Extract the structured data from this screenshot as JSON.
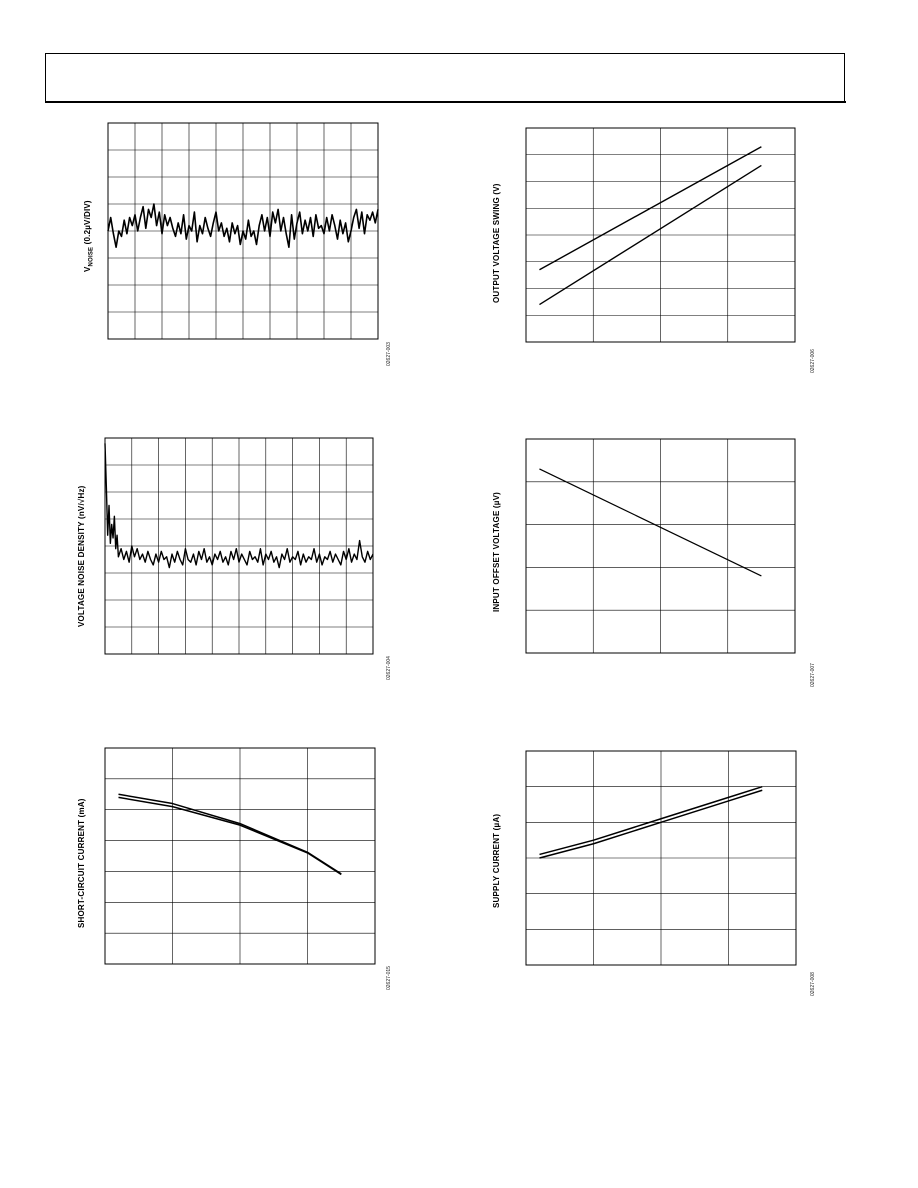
{
  "chart_data": [
    {
      "id": "c1",
      "type": "line",
      "ylabel_prefix": "V",
      "ylabel_sub": "NOISE",
      "ylabel_rest": " (0.2µV/DIV)",
      "figure_id": "02627-003",
      "grid": true,
      "grid_cols": 10,
      "grid_rows": 8,
      "xlim": [
        0,
        10
      ],
      "ylim": [
        0,
        8
      ],
      "series": [
        {
          "x": [
            0,
            0.1,
            0.2,
            0.3,
            0.4,
            0.5,
            0.6,
            0.7,
            0.8,
            0.9,
            1.0,
            1.1,
            1.2,
            1.3,
            1.4,
            1.5,
            1.6,
            1.7,
            1.8,
            1.9,
            2.0,
            2.1,
            2.2,
            2.3,
            2.4,
            2.5,
            2.6,
            2.7,
            2.8,
            2.9,
            3.0,
            3.1,
            3.2,
            3.3,
            3.4,
            3.5,
            3.6,
            3.7,
            3.8,
            3.9,
            4.0,
            4.1,
            4.2,
            4.3,
            4.4,
            4.5,
            4.6,
            4.7,
            4.8,
            4.9,
            5.0,
            5.1,
            5.2,
            5.3,
            5.4,
            5.5,
            5.6,
            5.7,
            5.8,
            5.9,
            6.0,
            6.1,
            6.2,
            6.3,
            6.4,
            6.5,
            6.6,
            6.7,
            6.8,
            6.9,
            7.0,
            7.1,
            7.2,
            7.3,
            7.4,
            7.5,
            7.6,
            7.7,
            7.8,
            7.9,
            8.0,
            8.1,
            8.2,
            8.3,
            8.4,
            8.5,
            8.6,
            8.7,
            8.8,
            8.9,
            9.0,
            9.1,
            9.2,
            9.3,
            9.4,
            9.5,
            9.6,
            9.7,
            9.8,
            9.9,
            10.0
          ],
          "y": [
            4.0,
            4.5,
            3.9,
            3.4,
            4.0,
            3.8,
            4.4,
            3.9,
            4.5,
            4.2,
            4.6,
            4.0,
            4.5,
            4.9,
            4.1,
            4.8,
            4.5,
            5.0,
            4.2,
            4.7,
            3.9,
            4.6,
            4.2,
            4.5,
            4.1,
            3.8,
            4.3,
            3.9,
            4.6,
            3.7,
            4.2,
            4.0,
            4.7,
            3.6,
            4.2,
            3.9,
            4.5,
            4.1,
            3.8,
            4.3,
            4.7,
            4.0,
            4.3,
            3.8,
            4.1,
            3.6,
            4.3,
            3.9,
            4.2,
            3.5,
            4.0,
            3.7,
            4.4,
            3.8,
            4.0,
            3.5,
            4.2,
            4.6,
            4.0,
            4.5,
            3.8,
            4.7,
            4.3,
            4.8,
            4.0,
            4.5,
            3.9,
            3.4,
            4.6,
            3.7,
            4.3,
            4.7,
            3.9,
            4.4,
            4.0,
            4.5,
            3.8,
            4.6,
            4.1,
            4.2,
            3.9,
            4.5,
            4.0,
            4.6,
            4.2,
            3.7,
            4.4,
            3.9,
            4.3,
            3.6,
            4.0,
            4.5,
            4.8,
            4.1,
            4.7,
            3.9,
            4.6,
            4.4,
            4.7,
            4.3,
            4.8
          ]
        }
      ]
    },
    {
      "id": "c2",
      "type": "line",
      "ylabel": "OUTPUT VOLTAGE SWING (V)",
      "figure_id": "02627-006",
      "grid": true,
      "grid_cols": 4,
      "grid_rows": 8,
      "xlim": [
        0,
        4
      ],
      "ylim": [
        0,
        8
      ],
      "series": [
        {
          "x": [
            0.2,
            3.5
          ],
          "y": [
            2.7,
            7.3
          ]
        },
        {
          "x": [
            0.2,
            3.5
          ],
          "y": [
            1.4,
            6.6
          ]
        }
      ]
    },
    {
      "id": "c3",
      "type": "line",
      "ylabel": "VOLTAGE NOISE DENSITY (nV/√Hz)",
      "figure_id": "02627-004",
      "grid": true,
      "grid_cols": 10,
      "grid_rows": 8,
      "xlim": [
        0,
        10
      ],
      "ylim": [
        0,
        8
      ],
      "series": [
        {
          "x": [
            0,
            0.05,
            0.1,
            0.15,
            0.2,
            0.25,
            0.3,
            0.35,
            0.4,
            0.45,
            0.5,
            0.6,
            0.7,
            0.8,
            0.9,
            1.0,
            1.1,
            1.2,
            1.3,
            1.4,
            1.5,
            1.6,
            1.7,
            1.8,
            1.9,
            2.0,
            2.1,
            2.2,
            2.3,
            2.4,
            2.5,
            2.6,
            2.7,
            2.8,
            2.9,
            3.0,
            3.1,
            3.2,
            3.3,
            3.4,
            3.5,
            3.6,
            3.7,
            3.8,
            3.9,
            4.0,
            4.1,
            4.2,
            4.3,
            4.4,
            4.5,
            4.6,
            4.7,
            4.8,
            4.9,
            5.0,
            5.1,
            5.2,
            5.3,
            5.4,
            5.5,
            5.6,
            5.7,
            5.8,
            5.9,
            6.0,
            6.1,
            6.2,
            6.3,
            6.4,
            6.5,
            6.6,
            6.7,
            6.8,
            6.9,
            7.0,
            7.1,
            7.2,
            7.3,
            7.4,
            7.5,
            7.6,
            7.7,
            7.8,
            7.9,
            8.0,
            8.1,
            8.2,
            8.3,
            8.4,
            8.5,
            8.6,
            8.7,
            8.8,
            8.9,
            9.0,
            9.1,
            9.2,
            9.3,
            9.4,
            9.5,
            9.6,
            9.7,
            9.8,
            9.9,
            10.0
          ],
          "y": [
            7.8,
            6.2,
            4.4,
            5.5,
            4.1,
            4.8,
            4.3,
            5.1,
            3.9,
            4.4,
            3.6,
            3.9,
            3.5,
            3.8,
            3.4,
            4.0,
            3.6,
            3.9,
            3.5,
            3.7,
            3.4,
            3.8,
            3.5,
            3.3,
            3.7,
            3.4,
            3.8,
            3.5,
            3.6,
            3.2,
            3.7,
            3.4,
            3.8,
            3.5,
            3.3,
            3.9,
            3.5,
            3.4,
            3.7,
            3.3,
            3.8,
            3.5,
            3.9,
            3.4,
            3.6,
            3.3,
            3.7,
            3.5,
            3.8,
            3.4,
            3.6,
            3.3,
            3.8,
            3.5,
            3.9,
            3.4,
            3.7,
            3.5,
            3.3,
            3.8,
            3.5,
            3.6,
            3.4,
            3.9,
            3.3,
            3.7,
            3.5,
            3.8,
            3.4,
            3.6,
            3.2,
            3.7,
            3.5,
            3.9,
            3.4,
            3.6,
            3.5,
            3.8,
            3.3,
            3.7,
            3.4,
            3.6,
            3.5,
            3.9,
            3.4,
            3.7,
            3.3,
            3.6,
            3.5,
            3.8,
            3.4,
            3.7,
            3.5,
            3.3,
            3.8,
            3.5,
            3.9,
            3.4,
            3.7,
            3.5,
            4.2,
            3.6,
            3.4,
            3.8,
            3.5,
            3.7
          ]
        }
      ]
    },
    {
      "id": "c4",
      "type": "line",
      "ylabel": "INPUT OFFSET VOLTAGE (µV)",
      "figure_id": "02627-007",
      "grid": true,
      "grid_cols": 4,
      "grid_rows": 5,
      "xlim": [
        0,
        4
      ],
      "ylim": [
        0,
        5
      ],
      "series": [
        {
          "x": [
            0.2,
            3.5
          ],
          "y": [
            4.3,
            1.8
          ]
        }
      ]
    },
    {
      "id": "c5",
      "type": "line",
      "ylabel": "SHORT-CIRCUIT CURRENT (mA)",
      "figure_id": "02627-015",
      "grid": true,
      "grid_cols": 4,
      "grid_rows": 7,
      "xlim": [
        0,
        4
      ],
      "ylim": [
        0,
        7
      ],
      "series": [
        {
          "x": [
            0.2,
            1.0,
            2.0,
            3.0,
            3.5
          ],
          "y": [
            5.4,
            5.1,
            4.5,
            3.6,
            2.9
          ]
        },
        {
          "x": [
            0.2,
            1.0,
            2.0,
            3.0,
            3.5
          ],
          "y": [
            5.5,
            5.2,
            4.55,
            3.62,
            2.92
          ]
        }
      ]
    },
    {
      "id": "c6",
      "type": "line",
      "ylabel": "SUPPLY CURRENT (µA)",
      "figure_id": "02627-008",
      "grid": true,
      "grid_cols": 4,
      "grid_rows": 6,
      "xlim": [
        0,
        4
      ],
      "ylim": [
        0,
        6
      ],
      "series": [
        {
          "x": [
            0.2,
            1.0,
            2.0,
            3.0,
            3.5
          ],
          "y": [
            3.0,
            3.4,
            4.0,
            4.6,
            4.9
          ]
        },
        {
          "x": [
            0.2,
            1.0,
            2.0,
            3.0,
            3.5
          ],
          "y": [
            3.1,
            3.5,
            4.1,
            4.7,
            5.0
          ]
        }
      ]
    }
  ]
}
